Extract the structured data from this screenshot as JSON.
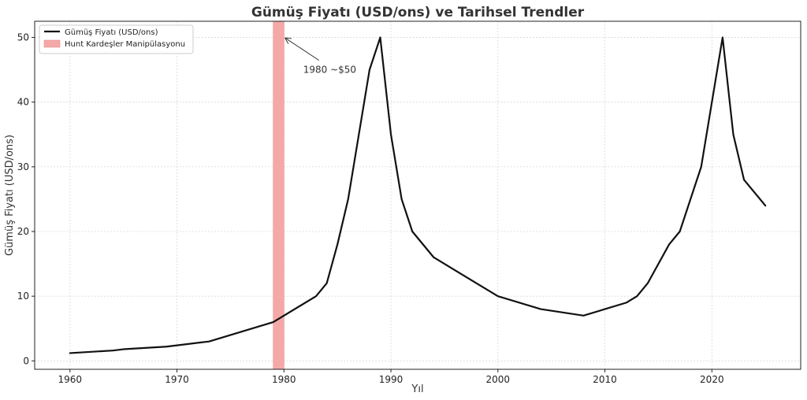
{
  "chart_data": {
    "type": "line",
    "title": "Gümüş Fiyatı (USD/ons) ve Tarihsel Trendler",
    "xlabel": "Yıl",
    "ylabel": "Gümüş Fiyatı (USD/ons)",
    "xlim": [
      1956.7,
      2028.3
    ],
    "ylim": [
      -1.3,
      52.5
    ],
    "xticks": [
      1960,
      1970,
      1980,
      1990,
      2000,
      2010,
      2020
    ],
    "yticks": [
      0,
      10,
      20,
      30,
      40,
      50
    ],
    "grid": true,
    "legend_position": "top-left",
    "series": [
      {
        "name": "Gümüş Fiyatı (USD/ons)",
        "color": "#111111",
        "x": [
          1960,
          1964,
          1965,
          1969,
          1973,
          1979,
          1983,
          1984,
          1985,
          1986,
          1987,
          1988,
          1989,
          1990,
          1991,
          1992,
          1994,
          1997,
          2000,
          2004,
          2006,
          2008,
          2010,
          2012,
          2013,
          2014,
          2016,
          2017,
          2019,
          2020,
          2021,
          2022,
          2023,
          2025
        ],
        "y": [
          1.2,
          1.6,
          1.8,
          2.2,
          3,
          6,
          10,
          12,
          18,
          25,
          35,
          45,
          50,
          35,
          25,
          20,
          16,
          13,
          10,
          8,
          7.5,
          7,
          8,
          9,
          10,
          12,
          18,
          20,
          30,
          40,
          50,
          35,
          28,
          24
        ]
      }
    ],
    "shaded_regions": [
      {
        "name": "Hunt Kardeşler Manipülasyonu",
        "x_start": 1979,
        "x_end": 1980,
        "color": "#f4a9a8"
      }
    ],
    "annotations": [
      {
        "text": "1980 ~$50",
        "point_x": 1980,
        "point_y": 50,
        "text_x": 1981.8,
        "text_y": 45
      }
    ]
  }
}
